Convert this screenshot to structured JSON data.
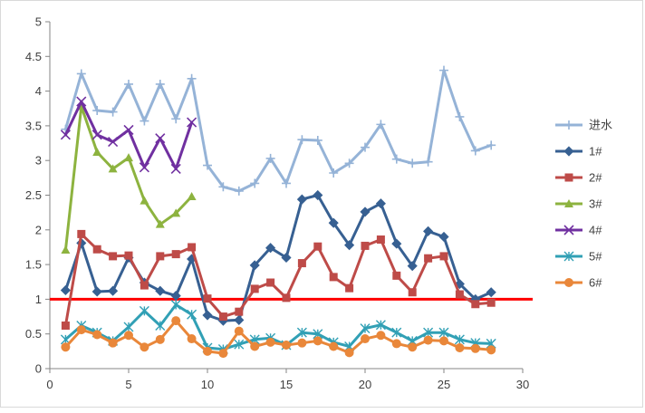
{
  "chart_data": {
    "type": "line",
    "title": "",
    "xlabel": "",
    "ylabel": "",
    "xlim": [
      0,
      30
    ],
    "ylim": [
      0,
      5
    ],
    "x_ticks": [
      0,
      5,
      10,
      15,
      20,
      25,
      30
    ],
    "y_ticks": [
      0,
      0.5,
      1,
      1.5,
      2,
      2.5,
      3,
      3.5,
      4,
      4.5,
      5
    ],
    "x_tick_labels": [
      "0",
      "5",
      "10",
      "15",
      "20",
      "25",
      "30"
    ],
    "y_tick_labels": [
      "0",
      "0.5",
      "1",
      "1.5",
      "2",
      "2.5",
      "3",
      "3.5",
      "4",
      "4.5",
      "5"
    ],
    "grid": false,
    "legend_position": "right",
    "reference_line": {
      "y": 1,
      "color": "#ff0000"
    },
    "series": [
      {
        "name": "进水",
        "color": "#95b3d7",
        "marker": "plus",
        "x": [
          1,
          2,
          3,
          4,
          5,
          6,
          7,
          8,
          9,
          10,
          11,
          12,
          13,
          14,
          15,
          16,
          17,
          18,
          19,
          20,
          21,
          22,
          23,
          24,
          25,
          26,
          27,
          28
        ],
        "y": [
          3.45,
          4.25,
          3.72,
          3.7,
          4.1,
          3.57,
          4.1,
          3.6,
          4.18,
          2.93,
          2.62,
          2.56,
          2.67,
          3.03,
          2.67,
          3.3,
          3.29,
          2.82,
          2.96,
          3.19,
          3.52,
          3.02,
          2.96,
          2.98,
          4.3,
          3.63,
          3.14,
          3.22
        ]
      },
      {
        "name": "1#",
        "color": "#376092",
        "marker": "diamond",
        "x": [
          1,
          2,
          3,
          4,
          5,
          6,
          7,
          8,
          9,
          10,
          11,
          12,
          13,
          14,
          15,
          16,
          17,
          18,
          19,
          20,
          21,
          22,
          23,
          24,
          25,
          26,
          27,
          28
        ],
        "y": [
          1.13,
          1.81,
          1.11,
          1.12,
          1.6,
          1.24,
          1.12,
          1.05,
          1.58,
          0.77,
          0.69,
          0.7,
          1.49,
          1.74,
          1.6,
          2.44,
          2.5,
          2.1,
          1.78,
          2.26,
          2.38,
          1.8,
          1.48,
          1.98,
          1.9,
          1.22,
          1.0,
          1.1
        ]
      },
      {
        "name": "2#",
        "color": "#be4b48",
        "marker": "square",
        "x": [
          1,
          2,
          3,
          4,
          5,
          6,
          7,
          8,
          9,
          10,
          11,
          12,
          13,
          14,
          15,
          16,
          17,
          18,
          19,
          20,
          21,
          22,
          23,
          24,
          25,
          26,
          27,
          28
        ],
        "y": [
          0.62,
          1.94,
          1.72,
          1.62,
          1.63,
          1.2,
          1.62,
          1.65,
          1.75,
          1.01,
          0.75,
          0.82,
          1.15,
          1.24,
          1.02,
          1.52,
          1.76,
          1.32,
          1.16,
          1.77,
          1.86,
          1.34,
          1.1,
          1.59,
          1.62,
          1.07,
          0.93,
          0.95
        ]
      },
      {
        "name": "3#",
        "color": "#8db33f",
        "marker": "triangle",
        "x": [
          1,
          2,
          3,
          4,
          5,
          6,
          7,
          8,
          9
        ],
        "y": [
          1.71,
          3.78,
          3.12,
          2.88,
          3.04,
          2.42,
          2.08,
          2.24,
          2.48
        ]
      },
      {
        "name": "4#",
        "color": "#7030a0",
        "marker": "x",
        "x": [
          1,
          2,
          3,
          4,
          5,
          6,
          7,
          8,
          9
        ],
        "y": [
          3.37,
          3.85,
          3.37,
          3.27,
          3.44,
          2.9,
          3.32,
          2.88,
          3.55
        ]
      },
      {
        "name": "5#",
        "color": "#31a0b5",
        "marker": "star",
        "x": [
          1,
          2,
          3,
          4,
          5,
          6,
          7,
          8,
          9,
          10,
          11,
          12,
          13,
          14,
          15,
          16,
          17,
          18,
          19,
          20,
          21,
          22,
          23,
          24,
          25,
          26,
          27,
          28
        ],
        "y": [
          0.42,
          0.62,
          0.52,
          0.4,
          0.6,
          0.83,
          0.62,
          0.92,
          0.78,
          0.3,
          0.28,
          0.35,
          0.42,
          0.44,
          0.34,
          0.52,
          0.5,
          0.38,
          0.32,
          0.58,
          0.63,
          0.52,
          0.4,
          0.52,
          0.52,
          0.42,
          0.37,
          0.36
        ]
      },
      {
        "name": "6#",
        "color": "#e9873a",
        "marker": "circle",
        "x": [
          1,
          2,
          3,
          4,
          5,
          6,
          7,
          8,
          9,
          10,
          11,
          12,
          13,
          14,
          15,
          16,
          17,
          18,
          19,
          20,
          21,
          22,
          23,
          24,
          25,
          26,
          27,
          28
        ],
        "y": [
          0.31,
          0.56,
          0.49,
          0.37,
          0.48,
          0.31,
          0.42,
          0.69,
          0.43,
          0.25,
          0.22,
          0.54,
          0.32,
          0.38,
          0.34,
          0.37,
          0.4,
          0.32,
          0.23,
          0.43,
          0.48,
          0.36,
          0.31,
          0.41,
          0.4,
          0.3,
          0.29,
          0.27
        ]
      }
    ]
  }
}
